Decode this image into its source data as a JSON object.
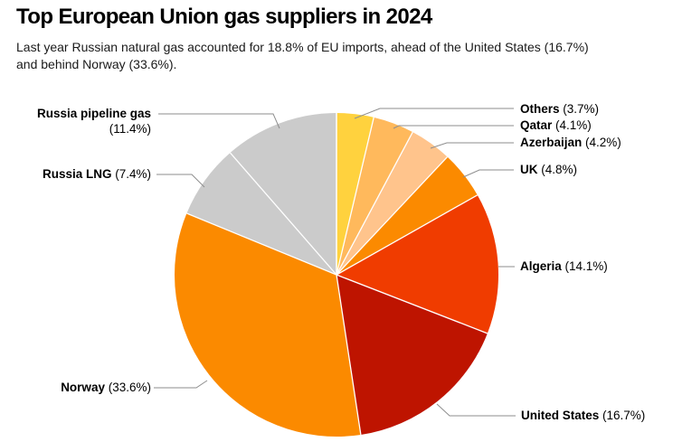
{
  "header": {
    "title": "Top European Union gas suppliers in 2024",
    "subtitle": "Last year Russian natural gas accounted for 18.8% of EU imports, ahead of the United States (16.7%) and behind Norway (33.6%)."
  },
  "chart_data": {
    "type": "pie",
    "title": "Top European Union gas suppliers in 2024",
    "units": "percent of EU gas imports",
    "start_angle_deg": 0,
    "direction": "clockwise",
    "total": 100,
    "legend_position": "callout-labels",
    "grid": false,
    "slices": [
      {
        "label": "Others",
        "value": 3.7,
        "pct_text": "(3.7%)",
        "color": "#FFD23E"
      },
      {
        "label": "Qatar",
        "value": 4.1,
        "pct_text": "(4.1%)",
        "color": "#FFB95C"
      },
      {
        "label": "Azerbaijan",
        "value": 4.2,
        "pct_text": "(4.2%)",
        "color": "#FFC48C"
      },
      {
        "label": "UK",
        "value": 4.8,
        "pct_text": "(4.8%)",
        "color": "#FB8A00"
      },
      {
        "label": "Algeria",
        "value": 14.1,
        "pct_text": "(14.1%)",
        "color": "#F03C00"
      },
      {
        "label": "United States",
        "value": 16.7,
        "pct_text": "(16.7%)",
        "color": "#BE1400"
      },
      {
        "label": "Norway",
        "value": 33.6,
        "pct_text": "(33.6%)",
        "color": "#FB8A00"
      },
      {
        "label": "Russia LNG",
        "value": 7.4,
        "pct_text": "(7.4%)",
        "color": "#CBCBCB"
      },
      {
        "label": "Russia pipeline gas",
        "value": 11.4,
        "pct_text": "(11.4%)",
        "color": "#CBCBCB"
      }
    ]
  },
  "style": {
    "leader_line_color": "#8E8E8E",
    "divider_color": "#FFFFFF",
    "label_text_color": "#000000"
  }
}
